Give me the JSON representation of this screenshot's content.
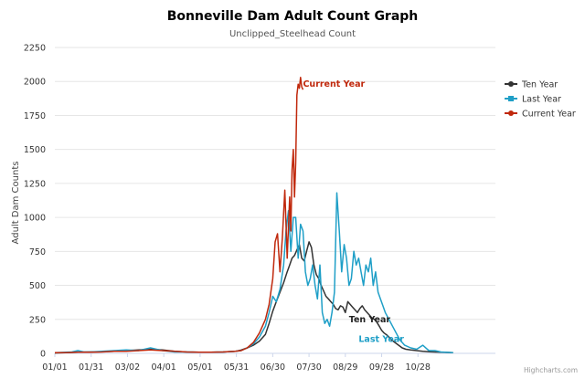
{
  "chart_data": {
    "type": "line",
    "title": "Bonneville Dam Adult Count Graph",
    "subtitle": "Unclipped_Steelhead Count",
    "ylabel": "Adult Dam Counts",
    "xlabel": "",
    "ylim": [
      0,
      2250
    ],
    "xlim": [
      1,
      365
    ],
    "y_ticks": [
      0,
      250,
      500,
      750,
      1000,
      1250,
      1500,
      1750,
      2000,
      2250
    ],
    "x_ticks": [
      {
        "label": "01/01",
        "day": 1
      },
      {
        "label": "01/31",
        "day": 31
      },
      {
        "label": "03/02",
        "day": 61
      },
      {
        "label": "04/01",
        "day": 91
      },
      {
        "label": "05/01",
        "day": 121
      },
      {
        "label": "05/31",
        "day": 151
      },
      {
        "label": "06/30",
        "day": 181
      },
      {
        "label": "07/30",
        "day": 211
      },
      {
        "label": "08/29",
        "day": 241
      },
      {
        "label": "09/28",
        "day": 271
      },
      {
        "label": "10/28",
        "day": 301
      }
    ],
    "grid": true,
    "legend_position": "right",
    "series": [
      {
        "name": "Ten Year",
        "color": "#333333",
        "marker": "circle",
        "x": [
          1,
          10,
          20,
          30,
          40,
          50,
          60,
          70,
          80,
          90,
          100,
          110,
          120,
          130,
          140,
          150,
          155,
          160,
          165,
          170,
          175,
          178,
          181,
          184,
          187,
          190,
          193,
          195,
          197,
          199,
          201,
          203,
          205,
          207,
          209,
          211,
          213,
          215,
          217,
          219,
          221,
          223,
          225,
          227,
          229,
          231,
          233,
          235,
          237,
          239,
          241,
          243,
          245,
          247,
          249,
          251,
          253,
          255,
          257,
          259,
          261,
          263,
          265,
          267,
          269,
          271,
          273,
          276,
          279,
          282,
          285,
          288,
          291,
          295,
          300,
          305,
          310,
          315,
          320,
          330
        ],
        "values": [
          3,
          5,
          8,
          10,
          12,
          15,
          20,
          25,
          30,
          25,
          15,
          10,
          8,
          8,
          10,
          15,
          25,
          40,
          60,
          90,
          140,
          220,
          310,
          380,
          450,
          520,
          600,
          650,
          700,
          720,
          760,
          800,
          700,
          680,
          750,
          820,
          780,
          650,
          580,
          550,
          500,
          460,
          420,
          400,
          380,
          360,
          330,
          320,
          350,
          340,
          300,
          380,
          360,
          340,
          320,
          300,
          330,
          350,
          320,
          300,
          280,
          260,
          250,
          230,
          200,
          170,
          150,
          130,
          100,
          80,
          60,
          40,
          30,
          25,
          20,
          15,
          12,
          10,
          8,
          5
        ]
      },
      {
        "name": "Last Year",
        "color": "#1f9fc7",
        "marker": "square",
        "x": [
          1,
          10,
          15,
          20,
          25,
          30,
          40,
          50,
          60,
          70,
          75,
          80,
          85,
          90,
          95,
          100,
          110,
          120,
          130,
          140,
          150,
          155,
          160,
          165,
          170,
          175,
          178,
          181,
          184,
          187,
          190,
          192,
          194,
          196,
          198,
          200,
          202,
          204,
          206,
          208,
          210,
          212,
          214,
          216,
          218,
          220,
          222,
          224,
          226,
          228,
          230,
          232,
          234,
          236,
          238,
          240,
          242,
          244,
          246,
          248,
          250,
          252,
          254,
          256,
          258,
          260,
          262,
          264,
          266,
          268,
          270,
          272,
          274,
          277,
          280,
          283,
          286,
          290,
          295,
          300,
          305,
          310,
          315,
          320,
          330
        ],
        "values": [
          5,
          8,
          10,
          20,
          10,
          10,
          15,
          20,
          25,
          20,
          30,
          40,
          30,
          20,
          15,
          10,
          10,
          8,
          8,
          10,
          15,
          20,
          40,
          70,
          120,
          200,
          300,
          420,
          380,
          470,
          650,
          900,
          1050,
          750,
          1000,
          1000,
          700,
          950,
          900,
          600,
          500,
          550,
          650,
          500,
          400,
          650,
          300,
          220,
          250,
          200,
          300,
          450,
          1180,
          900,
          600,
          800,
          700,
          500,
          550,
          750,
          650,
          700,
          600,
          500,
          650,
          600,
          700,
          500,
          600,
          450,
          400,
          350,
          300,
          250,
          200,
          150,
          100,
          60,
          40,
          30,
          60,
          20,
          20,
          10,
          5
        ]
      },
      {
        "name": "Current Year",
        "color": "#c0280c",
        "marker": "circle",
        "x": [
          1,
          10,
          20,
          30,
          40,
          50,
          60,
          70,
          80,
          90,
          100,
          110,
          120,
          130,
          140,
          150,
          155,
          160,
          165,
          170,
          175,
          178,
          181,
          183,
          185,
          187,
          189,
          191,
          193,
          195,
          196,
          197,
          198,
          199,
          200,
          201,
          202,
          203,
          204,
          205,
          206
        ],
        "values": [
          5,
          5,
          8,
          8,
          10,
          15,
          15,
          20,
          25,
          20,
          15,
          10,
          8,
          8,
          10,
          15,
          20,
          40,
          80,
          150,
          250,
          360,
          550,
          820,
          880,
          600,
          850,
          1200,
          700,
          1150,
          900,
          1350,
          1500,
          1150,
          1400,
          1900,
          1980,
          1950,
          2030,
          1960,
          1940
        ]
      }
    ],
    "annotations": [
      {
        "text": "Current Year",
        "x": 206,
        "y": 1960,
        "color": "#c0280c"
      },
      {
        "text": "Ten Year",
        "x": 244,
        "y": 230,
        "color": "#222222"
      },
      {
        "text": "Last Year",
        "x": 252,
        "y": 85,
        "color": "#1f9fc7"
      }
    ],
    "credit": "Highcharts.com"
  }
}
